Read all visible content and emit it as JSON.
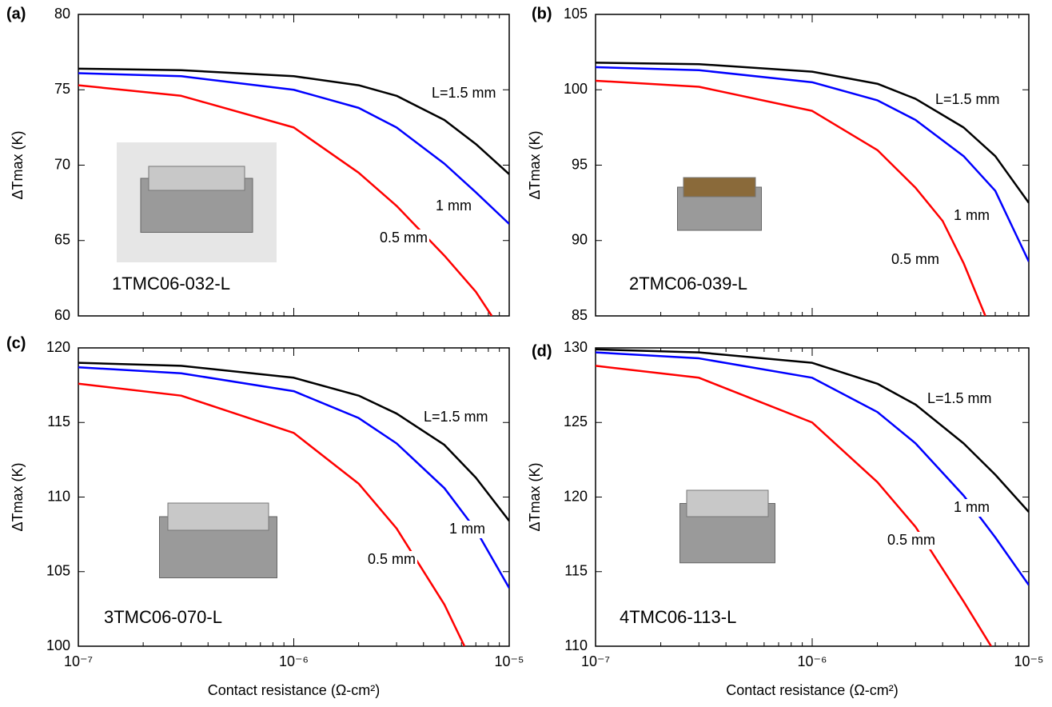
{
  "chart_data": [
    {
      "type": "line",
      "panel_label": "(a)",
      "annotation": "1TMC06-032-L",
      "ylabel": "ΔTmax (K)",
      "xscale": "log",
      "xlim": [
        1e-07,
        1e-05
      ],
      "xticks": [
        {
          "value": 1e-07,
          "label": "10⁻⁷"
        },
        {
          "value": 1e-06,
          "label": "10⁻⁶"
        },
        {
          "value": 1e-05,
          "label": "10⁻⁵"
        }
      ],
      "ylim": [
        60,
        80
      ],
      "yticks": [
        60,
        65,
        70,
        75,
        80
      ],
      "series": [
        {
          "name": "L=1.5 mm",
          "color": "#000000",
          "x": [
            1e-07,
            3e-07,
            1e-06,
            2e-06,
            3e-06,
            5e-06,
            7e-06,
            1e-05
          ],
          "values": [
            76.4,
            76.3,
            75.9,
            75.3,
            74.6,
            73.0,
            71.4,
            69.4
          ]
        },
        {
          "name": "1 mm",
          "color": "#0000ff",
          "x": [
            1e-07,
            3e-07,
            1e-06,
            2e-06,
            3e-06,
            5e-06,
            7e-06,
            1e-05
          ],
          "values": [
            76.1,
            75.9,
            75.0,
            73.8,
            72.5,
            70.1,
            68.2,
            66.1
          ]
        },
        {
          "name": "0.5 mm",
          "color": "#ff0000",
          "x": [
            1e-07,
            3e-07,
            1e-06,
            2e-06,
            3e-06,
            5e-06,
            7e-06,
            8.3e-06
          ],
          "values": [
            75.3,
            74.6,
            72.5,
            69.5,
            67.3,
            64.0,
            61.6,
            60.0
          ]
        }
      ]
    },
    {
      "type": "line",
      "panel_label": "(b)",
      "annotation": "2TMC06-039-L",
      "ylabel": "ΔTmax (K)",
      "xscale": "log",
      "xlim": [
        1e-07,
        1e-05
      ],
      "xticks": [
        {
          "value": 1e-07,
          "label": "10⁻⁷"
        },
        {
          "value": 1e-06,
          "label": "10⁻⁶"
        },
        {
          "value": 1e-05,
          "label": "10⁻⁵"
        }
      ],
      "ylim": [
        85,
        105
      ],
      "yticks": [
        85,
        90,
        95,
        100,
        105
      ],
      "series": [
        {
          "name": "L=1.5 mm",
          "color": "#000000",
          "x": [
            1e-07,
            3e-07,
            1e-06,
            2e-06,
            3e-06,
            5e-06,
            7e-06,
            1e-05
          ],
          "values": [
            101.8,
            101.7,
            101.2,
            100.4,
            99.4,
            97.5,
            95.6,
            92.5
          ]
        },
        {
          "name": "1 mm",
          "color": "#0000ff",
          "x": [
            1e-07,
            3e-07,
            1e-06,
            2e-06,
            3e-06,
            5e-06,
            7e-06,
            1e-05
          ],
          "values": [
            101.5,
            101.3,
            100.5,
            99.3,
            98.0,
            95.6,
            93.3,
            88.6
          ]
        },
        {
          "name": "0.5 mm",
          "color": "#ff0000",
          "x": [
            1e-07,
            3e-07,
            1e-06,
            2e-06,
            3e-06,
            4e-06,
            5e-06,
            6.3e-06
          ],
          "values": [
            100.6,
            100.2,
            98.6,
            96.0,
            93.5,
            91.3,
            88.5,
            85.0
          ]
        }
      ]
    },
    {
      "type": "line",
      "panel_label": "(c)",
      "annotation": "3TMC06-070-L",
      "ylabel": "ΔTmax (K)",
      "xlabel": "Contact resistance (Ω-cm²)",
      "xscale": "log",
      "xlim": [
        1e-07,
        1e-05
      ],
      "xticks": [
        {
          "value": 1e-07,
          "label": "10⁻⁷"
        },
        {
          "value": 1e-06,
          "label": "10⁻⁶"
        },
        {
          "value": 1e-05,
          "label": "10⁻⁵"
        }
      ],
      "ylim": [
        100,
        120
      ],
      "yticks": [
        100,
        105,
        110,
        115,
        120
      ],
      "series": [
        {
          "name": "L=1.5 mm",
          "color": "#000000",
          "x": [
            1e-07,
            3e-07,
            1e-06,
            2e-06,
            3e-06,
            5e-06,
            7e-06,
            1e-05
          ],
          "values": [
            119.0,
            118.8,
            118.0,
            116.8,
            115.6,
            113.5,
            111.3,
            108.4
          ]
        },
        {
          "name": "1 mm",
          "color": "#0000ff",
          "x": [
            1e-07,
            3e-07,
            1e-06,
            2e-06,
            3e-06,
            5e-06,
            7e-06,
            1e-05
          ],
          "values": [
            118.7,
            118.3,
            117.1,
            115.3,
            113.6,
            110.6,
            107.8,
            103.9
          ]
        },
        {
          "name": "0.5 mm",
          "color": "#ff0000",
          "x": [
            1e-07,
            3e-07,
            1e-06,
            2e-06,
            3e-06,
            5e-06,
            6.2e-06
          ],
          "values": [
            117.6,
            116.8,
            114.3,
            110.9,
            107.9,
            102.8,
            100.0
          ]
        }
      ]
    },
    {
      "type": "line",
      "panel_label": "(d)",
      "annotation": "4TMC06-113-L",
      "ylabel": "ΔTmax (K)",
      "xlabel": "Contact resistance (Ω-cm²)",
      "xscale": "log",
      "xlim": [
        1e-07,
        1e-05
      ],
      "xticks": [
        {
          "value": 1e-07,
          "label": "10⁻⁷"
        },
        {
          "value": 1e-06,
          "label": "10⁻⁶"
        },
        {
          "value": 1e-05,
          "label": "10⁻⁵"
        }
      ],
      "ylim": [
        110,
        130
      ],
      "yticks": [
        110,
        115,
        120,
        125,
        130
      ],
      "series": [
        {
          "name": "L=1.5 mm",
          "color": "#000000",
          "x": [
            1e-07,
            3e-07,
            1e-06,
            2e-06,
            3e-06,
            5e-06,
            7e-06,
            1e-05
          ],
          "values": [
            129.9,
            129.7,
            129.0,
            127.6,
            126.2,
            123.6,
            121.5,
            119.0
          ]
        },
        {
          "name": "1 mm",
          "color": "#0000ff",
          "x": [
            1e-07,
            3e-07,
            1e-06,
            2e-06,
            3e-06,
            5e-06,
            7e-06,
            1e-05
          ],
          "values": [
            129.7,
            129.3,
            128.0,
            125.7,
            123.6,
            120.1,
            117.3,
            114.1
          ]
        },
        {
          "name": "0.5 mm",
          "color": "#ff0000",
          "x": [
            1e-07,
            3e-07,
            1e-06,
            2e-06,
            3e-06,
            5e-06,
            6.7e-06
          ],
          "values": [
            128.8,
            128.0,
            125.0,
            121.0,
            118.0,
            113.0,
            110.0
          ]
        }
      ]
    }
  ]
}
